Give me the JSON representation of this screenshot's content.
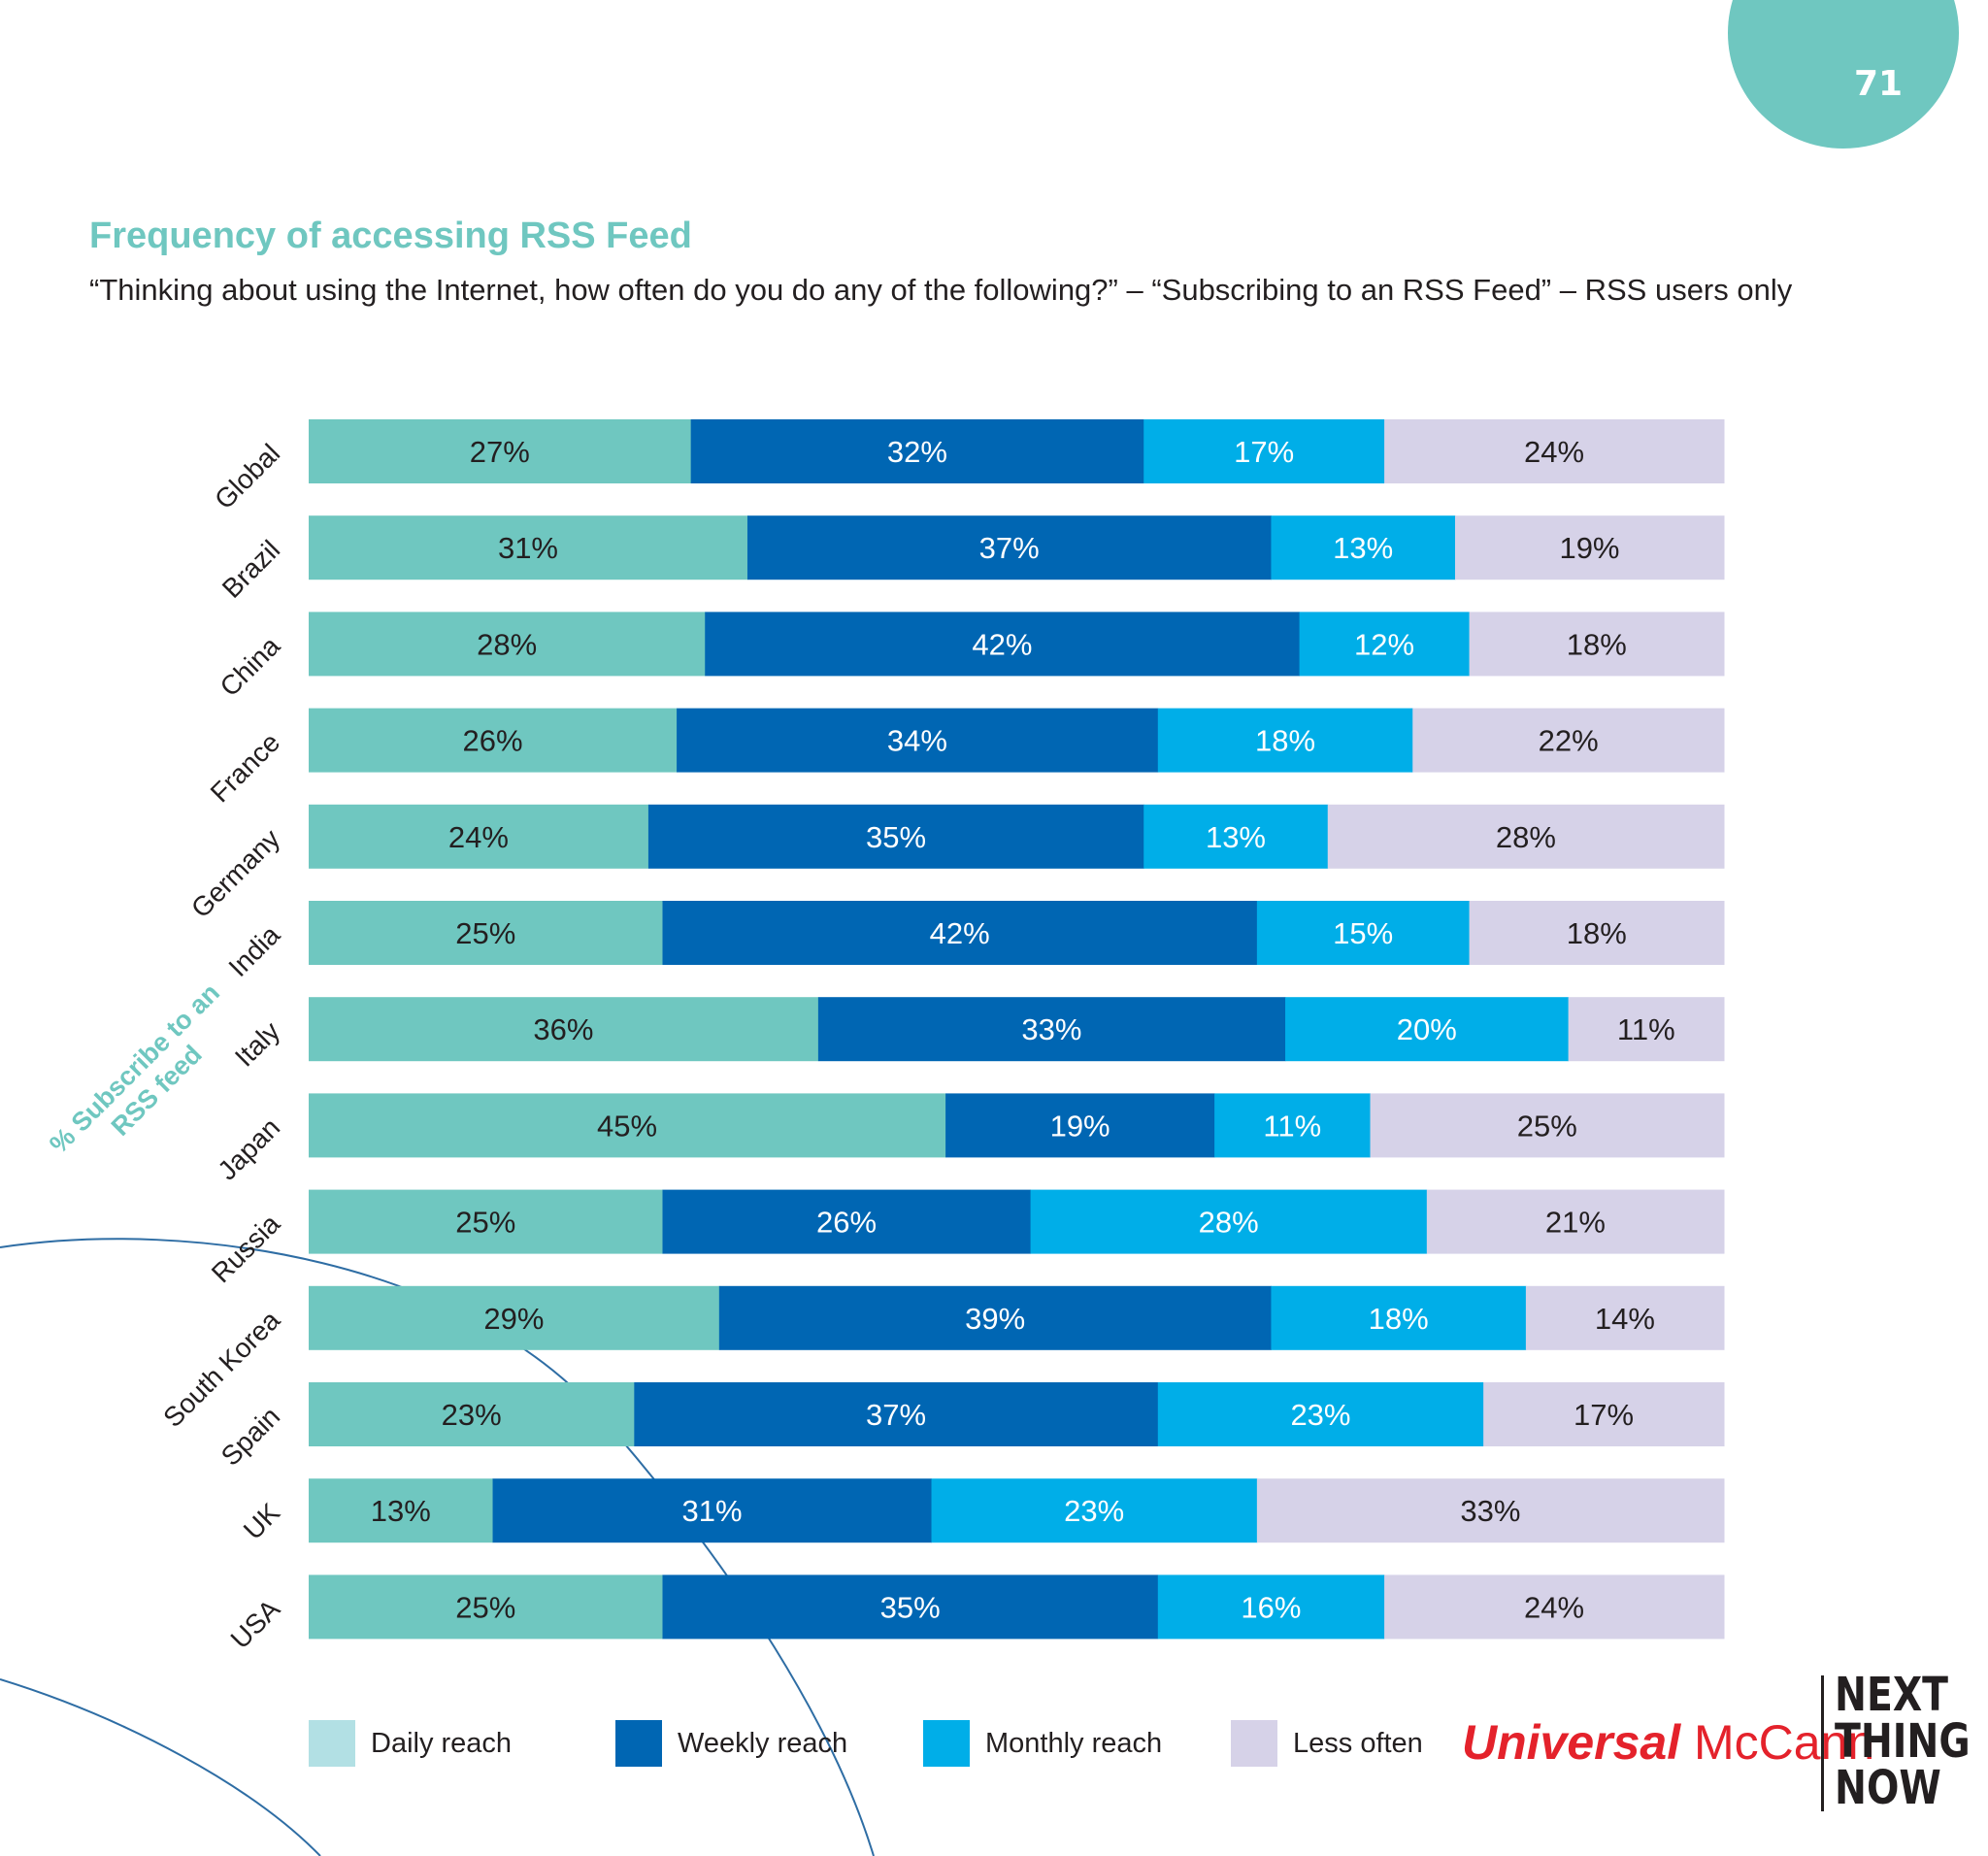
{
  "page": {
    "number": "71",
    "title": "Frequency of accessing RSS Feed",
    "subtitle": "“Thinking about using the Internet, how often do you do any of the following?” – “Subscribing to an RSS Feed” – RSS users only",
    "side_note": "% Subscribe to an RSS feed"
  },
  "colors": {
    "daily": "#6fc7c0",
    "weekly": "#0066b3",
    "monthly": "#00aee8",
    "less": "#d6d2e8",
    "accent": "#6fc7c0",
    "brand_red": "#e4222b"
  },
  "legend": [
    {
      "label": "Daily reach",
      "color": "#b2e0e4"
    },
    {
      "label": "Weekly reach",
      "color": "#0066b3"
    },
    {
      "label": "Monthly reach",
      "color": "#00aee8"
    },
    {
      "label": "Less often",
      "color": "#d6d2e8"
    }
  ],
  "logo": {
    "um_universal": "Universal",
    "um_mccann": "McCann",
    "ntn": [
      "NEXT",
      "THING",
      "NOW"
    ]
  },
  "chart_data": {
    "type": "bar",
    "orientation": "horizontal",
    "stacked": true,
    "percent_of_total": true,
    "categories": [
      "Global",
      "Brazil",
      "China",
      "France",
      "Germany",
      "India",
      "Italy",
      "Japan",
      "Russia",
      "South Korea",
      "Spain",
      "UK",
      "USA"
    ],
    "series": [
      {
        "name": "Daily reach",
        "values": [
          27,
          31,
          28,
          26,
          24,
          25,
          36,
          45,
          25,
          29,
          23,
          13,
          25
        ]
      },
      {
        "name": "Weekly reach",
        "values": [
          32,
          37,
          42,
          34,
          35,
          42,
          33,
          19,
          26,
          39,
          37,
          31,
          35
        ]
      },
      {
        "name": "Monthly reach",
        "values": [
          17,
          13,
          12,
          18,
          13,
          15,
          20,
          11,
          28,
          18,
          23,
          23,
          16
        ]
      },
      {
        "name": "Less often",
        "values": [
          24,
          19,
          18,
          22,
          28,
          18,
          11,
          25,
          21,
          14,
          17,
          33,
          24
        ]
      }
    ],
    "label_suffix": "%",
    "legend_position": "bottom",
    "grid": false
  }
}
